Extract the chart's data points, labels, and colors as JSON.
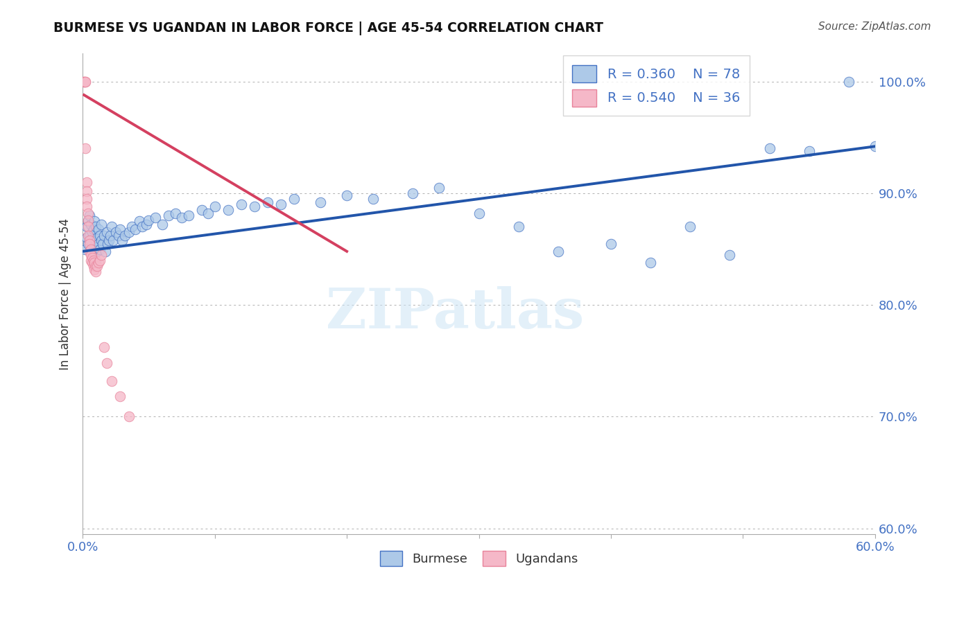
{
  "title": "BURMESE VS UGANDAN IN LABOR FORCE | AGE 45-54 CORRELATION CHART",
  "source": "Source: ZipAtlas.com",
  "ylabel": "In Labor Force | Age 45-54",
  "xlim": [
    0.0,
    0.6
  ],
  "ylim": [
    0.595,
    1.025
  ],
  "x_ticks": [
    0.0,
    0.1,
    0.2,
    0.3,
    0.4,
    0.5,
    0.6
  ],
  "y_ticks": [
    0.6,
    0.7,
    0.8,
    0.9,
    1.0
  ],
  "y_tick_labels": [
    "60.0%",
    "70.0%",
    "80.0%",
    "90.0%",
    "100.0%"
  ],
  "blue_R": 0.36,
  "blue_N": 78,
  "pink_R": 0.54,
  "pink_N": 36,
  "blue_color": "#adc9e8",
  "pink_color": "#f5b8c8",
  "blue_edge_color": "#4472c4",
  "pink_edge_color": "#e8829a",
  "blue_line_color": "#2255aa",
  "pink_line_color": "#d44060",
  "watermark": "ZIPatlas",
  "blue_scatter_x": [
    0.002,
    0.003,
    0.003,
    0.004,
    0.004,
    0.005,
    0.005,
    0.006,
    0.006,
    0.007,
    0.007,
    0.008,
    0.008,
    0.009,
    0.009,
    0.01,
    0.01,
    0.01,
    0.011,
    0.011,
    0.012,
    0.012,
    0.013,
    0.013,
    0.014,
    0.014,
    0.015,
    0.016,
    0.017,
    0.018,
    0.019,
    0.02,
    0.021,
    0.022,
    0.023,
    0.025,
    0.027,
    0.028,
    0.03,
    0.032,
    0.035,
    0.037,
    0.04,
    0.043,
    0.045,
    0.048,
    0.05,
    0.055,
    0.06,
    0.065,
    0.07,
    0.075,
    0.08,
    0.09,
    0.095,
    0.1,
    0.11,
    0.12,
    0.13,
    0.14,
    0.15,
    0.16,
    0.18,
    0.2,
    0.22,
    0.25,
    0.27,
    0.3,
    0.33,
    0.36,
    0.4,
    0.43,
    0.46,
    0.49,
    0.52,
    0.55,
    0.58,
    0.6
  ],
  "blue_scatter_y": [
    0.85,
    0.87,
    0.86,
    0.855,
    0.875,
    0.862,
    0.88,
    0.858,
    0.872,
    0.848,
    0.865,
    0.852,
    0.868,
    0.845,
    0.875,
    0.84,
    0.858,
    0.87,
    0.848,
    0.86,
    0.855,
    0.868,
    0.85,
    0.862,
    0.858,
    0.872,
    0.855,
    0.862,
    0.848,
    0.865,
    0.855,
    0.858,
    0.862,
    0.87,
    0.858,
    0.865,
    0.862,
    0.868,
    0.858,
    0.862,
    0.865,
    0.87,
    0.868,
    0.875,
    0.87,
    0.872,
    0.876,
    0.878,
    0.872,
    0.88,
    0.882,
    0.878,
    0.88,
    0.885,
    0.882,
    0.888,
    0.885,
    0.89,
    0.888,
    0.892,
    0.89,
    0.895,
    0.892,
    0.898,
    0.895,
    0.9,
    0.905,
    0.882,
    0.87,
    0.848,
    0.855,
    0.838,
    0.87,
    0.845,
    0.94,
    0.938,
    1.0,
    0.942
  ],
  "pink_scatter_x": [
    0.001,
    0.001,
    0.002,
    0.002,
    0.002,
    0.003,
    0.003,
    0.003,
    0.003,
    0.004,
    0.004,
    0.004,
    0.004,
    0.005,
    0.005,
    0.005,
    0.006,
    0.006,
    0.006,
    0.007,
    0.007,
    0.008,
    0.008,
    0.009,
    0.009,
    0.01,
    0.01,
    0.011,
    0.012,
    0.013,
    0.014,
    0.016,
    0.018,
    0.022,
    0.028,
    0.035
  ],
  "pink_scatter_y": [
    1.0,
    1.0,
    1.0,
    1.0,
    0.94,
    0.91,
    0.902,
    0.895,
    0.888,
    0.882,
    0.876,
    0.87,
    0.862,
    0.858,
    0.855,
    0.848,
    0.85,
    0.845,
    0.84,
    0.842,
    0.838,
    0.84,
    0.835,
    0.838,
    0.832,
    0.835,
    0.83,
    0.835,
    0.838,
    0.84,
    0.845,
    0.762,
    0.748,
    0.732,
    0.718,
    0.7
  ],
  "blue_line_x": [
    0.0,
    0.6
  ],
  "blue_line_y": [
    0.848,
    0.942
  ],
  "pink_line_x": [
    0.001,
    0.2
  ],
  "pink_line_y": [
    0.988,
    0.848
  ]
}
